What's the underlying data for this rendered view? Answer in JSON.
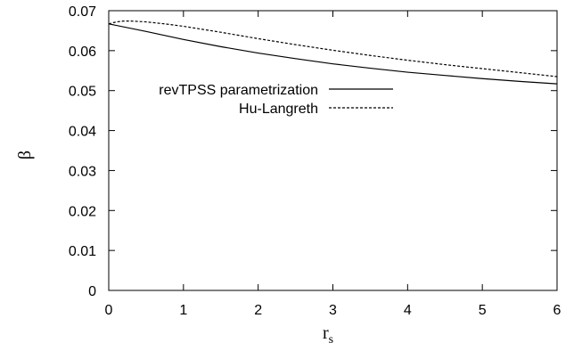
{
  "chart_data": {
    "type": "line",
    "xlabel": "r",
    "xlabel_subscript": "s",
    "ylabel": "β",
    "xlim": [
      0,
      6
    ],
    "ylim": [
      0,
      0.07
    ],
    "x_ticks": [
      "0",
      "1",
      "2",
      "3",
      "4",
      "5",
      "6"
    ],
    "y_ticks": [
      "0",
      "0.01",
      "0.02",
      "0.03",
      "0.04",
      "0.05",
      "0.06",
      "0.07"
    ],
    "grid": false,
    "legend_position": "top-left",
    "series": [
      {
        "name": "revTPSS parametrization",
        "style": "solid",
        "color": "#000000",
        "x": [
          0,
          0.5,
          1,
          1.5,
          2,
          2.5,
          3,
          3.5,
          4,
          4.5,
          5,
          5.5,
          6
        ],
        "y": [
          0.0667,
          0.0648,
          0.0628,
          0.061,
          0.0594,
          0.058,
          0.0567,
          0.0556,
          0.0546,
          0.0538,
          0.053,
          0.0523,
          0.0517
        ]
      },
      {
        "name": "Hu-Langreth",
        "style": "dashed",
        "color": "#000000",
        "x": [
          0,
          0.1,
          0.2,
          0.3,
          0.5,
          0.75,
          1,
          1.5,
          2,
          2.5,
          3,
          3.5,
          4,
          4.5,
          5,
          5.5,
          6
        ],
        "y": [
          0.0667,
          0.0672,
          0.0674,
          0.0674,
          0.0672,
          0.0667,
          0.0661,
          0.0646,
          0.063,
          0.0615,
          0.0601,
          0.0588,
          0.0576,
          0.0565,
          0.0555,
          0.0545,
          0.0535
        ]
      }
    ]
  }
}
